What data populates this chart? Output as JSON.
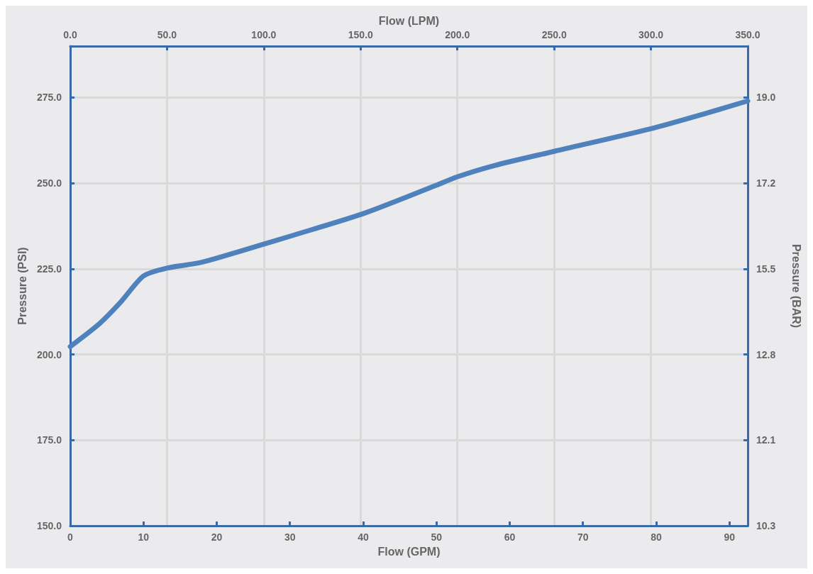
{
  "chart_data": {
    "type": "line",
    "xlabel": "Flow (GPM)",
    "x2label": "Flow (LPM)",
    "ylabel": "Pressure (PSI)",
    "y2label": "Pressure (BAR)",
    "x": [
      0,
      4,
      6.9,
      10,
      13.2,
      17.5,
      20,
      26.4,
      30,
      40,
      50,
      52.9,
      58,
      66.1,
      79.3,
      87,
      92.5
    ],
    "series": [
      {
        "color": "#4f81bd",
        "values": [
          202.3,
          209,
          215.3,
          222.9,
          225.2,
          226.7,
          228.1,
          232.2,
          234.5,
          241.1,
          249.4,
          251.9,
          255.2,
          259.3,
          265.9,
          270.5,
          274
        ]
      }
    ],
    "xlim": [
      0,
      92.5
    ],
    "xticks": [
      0,
      10,
      20,
      30,
      40,
      50,
      60,
      70,
      80,
      90
    ],
    "x2lim": [
      0,
      350
    ],
    "x2ticks": [
      {
        "value": 0,
        "label": "0.0"
      },
      {
        "value": 50,
        "label": "50.0"
      },
      {
        "value": 100,
        "label": "100.0"
      },
      {
        "value": 150,
        "label": "150.0"
      },
      {
        "value": 200,
        "label": "200.0"
      },
      {
        "value": 250,
        "label": "250.0"
      },
      {
        "value": 300,
        "label": "300.0"
      },
      {
        "value": 350,
        "label": "350.0"
      }
    ],
    "ylim": [
      150,
      290
    ],
    "yticks": [
      {
        "value": 150,
        "label": "150.0"
      },
      {
        "value": 175,
        "label": "175.0"
      },
      {
        "value": 200,
        "label": "200.0"
      },
      {
        "value": 225,
        "label": "225.0"
      },
      {
        "value": 250,
        "label": "250.0"
      },
      {
        "value": 275,
        "label": "275.0"
      }
    ],
    "y2_categories": [
      "19.0",
      "17.2",
      "15.5",
      "12.8",
      "12.1",
      "10.3"
    ],
    "grid": true,
    "marker": "none",
    "line_style": "solid"
  }
}
